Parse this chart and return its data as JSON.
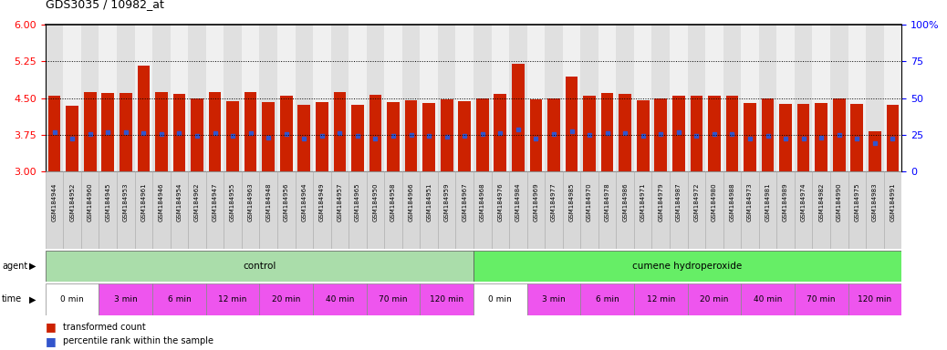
{
  "title": "GDS3035 / 10982_at",
  "samples": [
    "GSM184944",
    "GSM184952",
    "GSM184960",
    "GSM184945",
    "GSM184953",
    "GSM184961",
    "GSM184946",
    "GSM184954",
    "GSM184962",
    "GSM184947",
    "GSM184955",
    "GSM184963",
    "GSM184948",
    "GSM184956",
    "GSM184964",
    "GSM184949",
    "GSM184957",
    "GSM184965",
    "GSM184950",
    "GSM184958",
    "GSM184966",
    "GSM184951",
    "GSM184959",
    "GSM184967",
    "GSM184968",
    "GSM184976",
    "GSM184984",
    "GSM184969",
    "GSM184977",
    "GSM184985",
    "GSM184970",
    "GSM184978",
    "GSM184986",
    "GSM184971",
    "GSM184979",
    "GSM184987",
    "GSM184972",
    "GSM184980",
    "GSM184988",
    "GSM184973",
    "GSM184981",
    "GSM184989",
    "GSM184974",
    "GSM184982",
    "GSM184990",
    "GSM184975",
    "GSM184983",
    "GSM184991"
  ],
  "bar_values": [
    4.55,
    4.35,
    4.62,
    4.6,
    4.6,
    5.17,
    4.62,
    4.58,
    4.5,
    4.62,
    4.43,
    4.63,
    4.42,
    4.55,
    4.37,
    4.42,
    4.63,
    4.37,
    4.57,
    4.42,
    4.45,
    4.4,
    4.47,
    4.43,
    4.5,
    4.58,
    5.2,
    4.48,
    4.5,
    4.93,
    4.55,
    4.6,
    4.58,
    4.45,
    4.5,
    4.55,
    4.55,
    4.55,
    4.55,
    4.4,
    4.5,
    4.38,
    4.38,
    4.4,
    4.5,
    4.38,
    3.82,
    4.37
  ],
  "percentile_values": [
    3.8,
    3.68,
    3.77,
    3.8,
    3.8,
    3.78,
    3.76,
    3.78,
    3.73,
    3.78,
    3.73,
    3.79,
    3.69,
    3.76,
    3.68,
    3.73,
    3.79,
    3.72,
    3.68,
    3.73,
    3.74,
    3.72,
    3.71,
    3.73,
    3.76,
    3.79,
    3.85,
    3.68,
    3.76,
    3.82,
    3.74,
    3.79,
    3.79,
    3.73,
    3.76,
    3.8,
    3.73,
    3.76,
    3.76,
    3.68,
    3.73,
    3.68,
    3.68,
    3.7,
    3.74,
    3.68,
    3.58,
    3.68
  ],
  "ylim_left": [
    3.0,
    6.0
  ],
  "ylim_right": [
    0,
    100
  ],
  "yticks_left": [
    3.0,
    3.75,
    4.5,
    5.25,
    6.0
  ],
  "yticks_right": [
    0,
    25,
    50,
    75,
    100
  ],
  "hlines": [
    3.75,
    4.5,
    5.25
  ],
  "bar_color": "#cc2200",
  "percentile_color": "#3355cc",
  "bar_bottom": 3.0,
  "agent_groups": [
    {
      "label": "control",
      "start": 0,
      "end": 24,
      "color": "#aaddaa"
    },
    {
      "label": "cumene hydroperoxide",
      "start": 24,
      "end": 48,
      "color": "#66ee66"
    }
  ],
  "time_groups": [
    {
      "label": "0 min",
      "start": 0,
      "end": 3,
      "color": "#ffffff"
    },
    {
      "label": "3 min",
      "start": 3,
      "end": 6,
      "color": "#ee55ee"
    },
    {
      "label": "6 min",
      "start": 6,
      "end": 9,
      "color": "#ee55ee"
    },
    {
      "label": "12 min",
      "start": 9,
      "end": 12,
      "color": "#ee55ee"
    },
    {
      "label": "20 min",
      "start": 12,
      "end": 15,
      "color": "#ee55ee"
    },
    {
      "label": "40 min",
      "start": 15,
      "end": 18,
      "color": "#ee55ee"
    },
    {
      "label": "70 min",
      "start": 18,
      "end": 21,
      "color": "#ee55ee"
    },
    {
      "label": "120 min",
      "start": 21,
      "end": 24,
      "color": "#ee55ee"
    },
    {
      "label": "0 min",
      "start": 24,
      "end": 27,
      "color": "#ffffff"
    },
    {
      "label": "3 min",
      "start": 27,
      "end": 30,
      "color": "#ee55ee"
    },
    {
      "label": "6 min",
      "start": 30,
      "end": 33,
      "color": "#ee55ee"
    },
    {
      "label": "12 min",
      "start": 33,
      "end": 36,
      "color": "#ee55ee"
    },
    {
      "label": "20 min",
      "start": 36,
      "end": 39,
      "color": "#ee55ee"
    },
    {
      "label": "40 min",
      "start": 39,
      "end": 42,
      "color": "#ee55ee"
    },
    {
      "label": "70 min",
      "start": 42,
      "end": 45,
      "color": "#ee55ee"
    },
    {
      "label": "120 min",
      "start": 45,
      "end": 48,
      "color": "#ee55ee"
    }
  ],
  "background_color": "#ffffff",
  "plot_bg": "#ffffff",
  "col_bg_even": "#e0e0e0",
  "col_bg_odd": "#f0f0f0",
  "label_bg": "#d8d8d8"
}
